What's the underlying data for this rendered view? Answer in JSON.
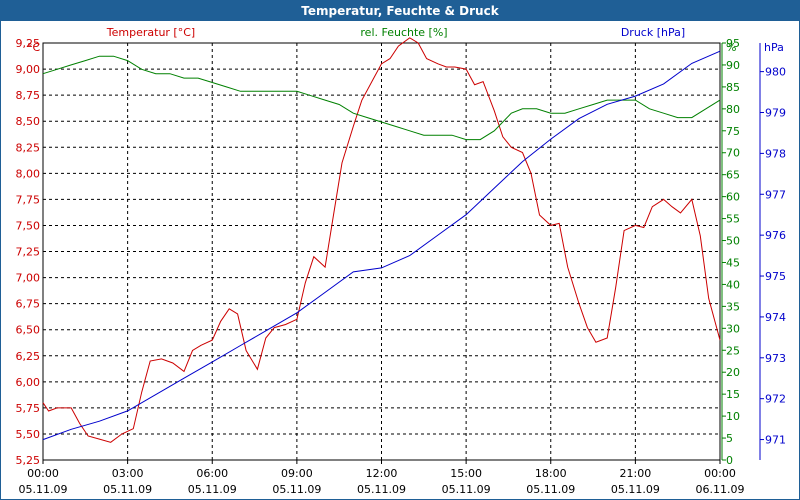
{
  "window": {
    "title": "Temperatur, Feuchte & Druck"
  },
  "chart_data": {
    "type": "line",
    "title": "Temperatur, Feuchte & Druck",
    "x": {
      "labels": [
        [
          "00:00",
          "05.11.09"
        ],
        [
          "03:00",
          "05.11.09"
        ],
        [
          "06:00",
          "05.11.09"
        ],
        [
          "09:00",
          "05.11.09"
        ],
        [
          "12:00",
          "05.11.09"
        ],
        [
          "15:00",
          "05.11.09"
        ],
        [
          "18:00",
          "05.11.09"
        ],
        [
          "21:00",
          "05.11.09"
        ],
        [
          "00:00",
          "06.11.09"
        ]
      ],
      "range_hours": [
        0,
        24
      ],
      "grid": true
    },
    "axes": {
      "left": {
        "unit": "°C",
        "range": [
          5.25,
          9.25
        ],
        "ticks": [
          "5,25",
          "5,50",
          "5,75",
          "6,00",
          "6,25",
          "6,50",
          "6,75",
          "7,00",
          "7,25",
          "7,50",
          "7,75",
          "8,00",
          "8,25",
          "8,50",
          "8,75",
          "9,00",
          "9,25"
        ],
        "color": "#cc0000"
      },
      "right1": {
        "unit": "%",
        "range": [
          0,
          95
        ],
        "ticks": [
          "0",
          "5",
          "10",
          "15",
          "20",
          "25",
          "30",
          "35",
          "40",
          "45",
          "50",
          "55",
          "60",
          "65",
          "70",
          "75",
          "80",
          "85",
          "90",
          "95"
        ],
        "color": "#008000"
      },
      "right2": {
        "unit": "hPa",
        "range": [
          970.5,
          980.7
        ],
        "ticks": [
          "971",
          "972",
          "973",
          "974",
          "975",
          "976",
          "977",
          "978",
          "979",
          "980"
        ],
        "color": "#0000cc"
      }
    },
    "series": [
      {
        "name": "Temperatur [°C]",
        "axis": "left",
        "color": "#cc0000",
        "hours": [
          0,
          0.2,
          0.5,
          1,
          1.3,
          1.6,
          2,
          2.4,
          2.8,
          3.2,
          3.5,
          3.8,
          4.2,
          4.6,
          5,
          5.3,
          5.6,
          6,
          6.3,
          6.6,
          6.9,
          7.2,
          7.6,
          7.9,
          8.2,
          8.6,
          9,
          9.3,
          9.6,
          10,
          10.3,
          10.6,
          11,
          11.3,
          11.7,
          12,
          12.3,
          12.6,
          13,
          13.3,
          13.6,
          14,
          14.3,
          14.6,
          15,
          15.3,
          15.6,
          16,
          16.3,
          16.6,
          17,
          17.3,
          17.6,
          18,
          18.3,
          18.6,
          19,
          19.3,
          19.6,
          20,
          20.3,
          20.6,
          21,
          21.3,
          21.6,
          22,
          22.3,
          22.6,
          23,
          23.3,
          23.6,
          24
        ],
        "values": [
          5.8,
          5.72,
          5.75,
          5.75,
          5.6,
          5.48,
          5.45,
          5.42,
          5.5,
          5.55,
          5.9,
          6.2,
          6.22,
          6.18,
          6.1,
          6.3,
          6.35,
          6.4,
          6.58,
          6.7,
          6.65,
          6.3,
          6.12,
          6.42,
          6.52,
          6.55,
          6.6,
          6.95,
          7.2,
          7.1,
          7.6,
          8.1,
          8.45,
          8.7,
          8.9,
          9.05,
          9.1,
          9.22,
          9.3,
          9.25,
          9.1,
          9.05,
          9.02,
          9.02,
          9.0,
          8.85,
          8.88,
          8.6,
          8.35,
          8.25,
          8.2,
          8.0,
          7.6,
          7.5,
          7.52,
          7.1,
          6.75,
          6.52,
          6.38,
          6.42,
          6.9,
          7.45,
          7.5,
          7.48,
          7.68,
          7.75,
          7.68,
          7.62,
          7.75,
          7.4,
          6.8,
          6.4
        ]
      },
      {
        "name": "rel. Feuchte [%]",
        "axis": "right1",
        "color": "#008000",
        "hours": [
          0,
          0.5,
          1,
          1.5,
          2,
          2.5,
          3,
          3.5,
          4,
          4.5,
          5,
          5.5,
          6,
          6.5,
          7,
          7.5,
          8,
          8.5,
          9,
          9.5,
          10,
          10.5,
          11,
          11.5,
          12,
          12.5,
          13,
          13.5,
          14,
          14.5,
          15,
          15.5,
          16,
          16.3,
          16.6,
          17,
          17.5,
          18,
          18.5,
          19,
          19.5,
          20,
          20.5,
          21,
          21.5,
          22,
          22.5,
          23,
          23.5,
          24
        ],
        "values": [
          88,
          89,
          90,
          91,
          92,
          92,
          91,
          89,
          88,
          88,
          87,
          87,
          86,
          85,
          84,
          84,
          84,
          84,
          84,
          83,
          82,
          81,
          79,
          78,
          77,
          76,
          75,
          74,
          74,
          74,
          73,
          73,
          75,
          77,
          79,
          80,
          80,
          79,
          79,
          80,
          81,
          82,
          82,
          82,
          80,
          79,
          78,
          78,
          80,
          82
        ]
      },
      {
        "name": "Druck [hPa]",
        "axis": "right2",
        "color": "#0000cc",
        "hours": [
          0,
          1,
          2,
          3,
          4,
          5,
          6,
          7,
          8,
          9,
          10,
          11,
          12,
          13,
          14,
          15,
          16,
          17,
          18,
          19,
          20,
          21,
          22,
          23,
          24
        ],
        "values": [
          971.0,
          971.25,
          971.45,
          971.7,
          972.1,
          972.5,
          972.9,
          973.3,
          973.7,
          974.1,
          974.6,
          975.1,
          975.2,
          975.5,
          976.0,
          976.5,
          977.15,
          977.8,
          978.35,
          978.85,
          979.2,
          979.4,
          979.7,
          980.2,
          980.5
        ]
      }
    ]
  }
}
